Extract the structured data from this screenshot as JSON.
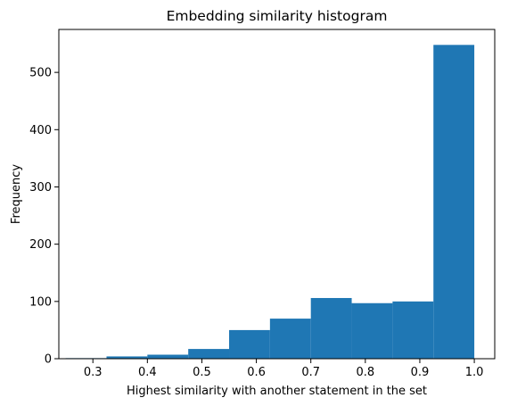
{
  "chart_data": {
    "type": "bar",
    "title": "Embedding similarity histogram",
    "xlabel": "Highest similarity with another statement in the set",
    "ylabel": "Frequency",
    "xlim": [
      0.2375,
      1.0375
    ],
    "ylim": [
      0,
      575
    ],
    "grid": false,
    "legend": "none",
    "bar_color": "#1f77b4",
    "bins": [
      {
        "x0": 0.25,
        "x1": 0.325,
        "value": 1
      },
      {
        "x0": 0.325,
        "x1": 0.4,
        "value": 4
      },
      {
        "x0": 0.4,
        "x1": 0.475,
        "value": 7
      },
      {
        "x0": 0.475,
        "x1": 0.55,
        "value": 17
      },
      {
        "x0": 0.55,
        "x1": 0.625,
        "value": 50
      },
      {
        "x0": 0.625,
        "x1": 0.7,
        "value": 70
      },
      {
        "x0": 0.7,
        "x1": 0.775,
        "value": 106
      },
      {
        "x0": 0.775,
        "x1": 0.85,
        "value": 97
      },
      {
        "x0": 0.85,
        "x1": 0.925,
        "value": 100
      },
      {
        "x0": 0.925,
        "x1": 1.0,
        "value": 548
      }
    ],
    "x_ticks": [
      {
        "value": 0.3,
        "label": "0.3"
      },
      {
        "value": 0.4,
        "label": "0.4"
      },
      {
        "value": 0.5,
        "label": "0.5"
      },
      {
        "value": 0.6,
        "label": "0.6"
      },
      {
        "value": 0.7,
        "label": "0.7"
      },
      {
        "value": 0.8,
        "label": "0.8"
      },
      {
        "value": 0.9,
        "label": "0.9"
      },
      {
        "value": 1.0,
        "label": "1.0"
      }
    ],
    "y_ticks": [
      {
        "value": 0,
        "label": "0"
      },
      {
        "value": 100,
        "label": "100"
      },
      {
        "value": 200,
        "label": "200"
      },
      {
        "value": 300,
        "label": "300"
      },
      {
        "value": 400,
        "label": "400"
      },
      {
        "value": 500,
        "label": "500"
      }
    ]
  }
}
